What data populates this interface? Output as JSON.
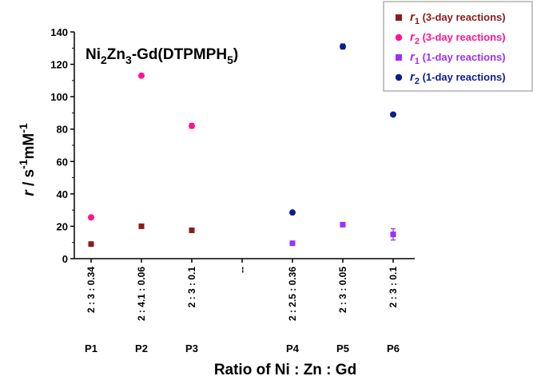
{
  "chart_data": {
    "type": "scatter",
    "title": "Ni2Zn3-Gd(DTPMPH5)",
    "title_parts": {
      "a": "Ni",
      "a_sub": "2",
      "b": "Zn",
      "b_sub": "3",
      "c": "-Gd(DTPMPH",
      "c_sub": "5",
      "d": ")"
    },
    "xlabel": "Ratio of Ni : Zn : Gd",
    "ylabel": "r / s-1mM-1",
    "ylabel_parts": {
      "r": "r",
      "mid": " / s",
      "exp1": "-1",
      "mm": "mM",
      "exp2": "-1"
    },
    "ylim": [
      0,
      140
    ],
    "yticks": [
      0,
      20,
      40,
      60,
      80,
      100,
      120,
      140
    ],
    "categories": [
      "2 : 3 : 0.34",
      "2 : 4.1 : 0.06",
      "2 : 3 : 0.1",
      "--",
      "2 : 2.5 : 0.36",
      "2 : 3 : 0.05",
      "2 : 3 : 0.1"
    ],
    "sample_labels": [
      "P1",
      "P2",
      "P3",
      "",
      "P4",
      "P5",
      "P6"
    ],
    "series": [
      {
        "name": "r1 (3-day reactions)",
        "sym": "r",
        "sub": "1",
        "suffix": " (3-day reactions)",
        "color": "#8B1A1A",
        "marker": "square",
        "x": [
          0,
          1,
          2
        ],
        "values": [
          9,
          20,
          17.5
        ],
        "err": [
          1,
          1,
          1
        ]
      },
      {
        "name": "r2 (3-day reactions)",
        "sym": "r",
        "sub": "2",
        "suffix": " (3-day reactions)",
        "color": "#FF1493",
        "marker": "circle",
        "x": [
          0,
          1,
          2
        ],
        "values": [
          25.5,
          113,
          82
        ],
        "err": [
          1,
          1,
          1.5
        ]
      },
      {
        "name": "r1 (1-day reactions)",
        "sym": "r",
        "sub": "1",
        "suffix": " (1-day reactions)",
        "color": "#9B30FF",
        "marker": "square",
        "x": [
          4,
          5,
          6
        ],
        "values": [
          9.5,
          21,
          15
        ],
        "err": [
          1,
          1,
          3.5
        ]
      },
      {
        "name": "r2 (1-day reactions)",
        "sym": "r",
        "sub": "2",
        "suffix": " (1-day reactions)",
        "color": "#0A1F8F",
        "marker": "circle",
        "x": [
          4,
          5,
          6
        ],
        "values": [
          28.5,
          131,
          89
        ],
        "err": [
          1,
          1.5,
          1
        ]
      }
    ],
    "legend_position": "top-right",
    "grid": false
  }
}
